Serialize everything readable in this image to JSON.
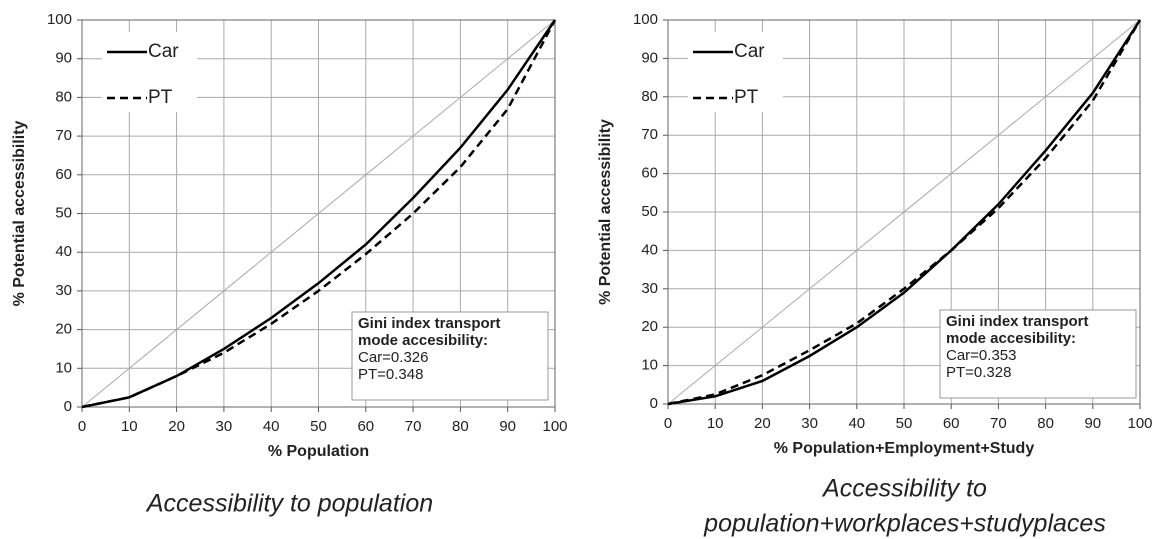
{
  "chart_data": [
    {
      "type": "line",
      "caption": [
        "Accessibility to population"
      ],
      "xlabel": "% Population",
      "ylabel": "% Potential accessibility",
      "x": [
        0,
        10,
        20,
        30,
        40,
        50,
        60,
        70,
        80,
        90,
        100
      ],
      "series": [
        {
          "name": "Car",
          "color": "#000000",
          "linestyle": "solid",
          "values": [
            0,
            2.5,
            8,
            15,
            23,
            32,
            42,
            54,
            67,
            82,
            100
          ]
        },
        {
          "name": "PT",
          "color": "#000000",
          "linestyle": "dashed",
          "values": [
            0,
            2.5,
            8,
            14,
            21.5,
            30,
            39.5,
            50,
            62,
            77,
            100
          ]
        }
      ],
      "xlim": [
        0,
        100
      ],
      "xticks": [
        0,
        10,
        20,
        30,
        40,
        50,
        60,
        70,
        80,
        90,
        100
      ],
      "ylim": [
        0,
        100
      ],
      "yticks": [
        0,
        10,
        20,
        30,
        40,
        50,
        60,
        70,
        80,
        90,
        100
      ],
      "grid": true,
      "legend": "upper left",
      "annotation": {
        "title": [
          "Gini index transport",
          "mode accesibility:"
        ],
        "lines": [
          "Car=0.326",
          "PT=0.348"
        ]
      }
    },
    {
      "type": "line",
      "caption": [
        "Accessibility to",
        "population+workplaces+studyplaces"
      ],
      "xlabel": "% Population+Employment+Study",
      "ylabel": "% Potential accessibility",
      "x": [
        0,
        10,
        20,
        30,
        40,
        50,
        60,
        70,
        80,
        90,
        100
      ],
      "series": [
        {
          "name": "Car",
          "color": "#000000",
          "linestyle": "solid",
          "values": [
            0,
            2,
            6,
            12.5,
            20,
            29,
            40,
            52,
            66,
            81,
            100
          ]
        },
        {
          "name": "PT",
          "color": "#000000",
          "linestyle": "dashed",
          "values": [
            0,
            2.5,
            7.5,
            14,
            21,
            30,
            40,
            51,
            64,
            79,
            100
          ]
        }
      ],
      "xlim": [
        0,
        100
      ],
      "xticks": [
        0,
        10,
        20,
        30,
        40,
        50,
        60,
        70,
        80,
        90,
        100
      ],
      "ylim": [
        0,
        100
      ],
      "yticks": [
        0,
        10,
        20,
        30,
        40,
        50,
        60,
        70,
        80,
        90,
        100
      ],
      "grid": true,
      "legend": "upper left",
      "annotation": {
        "title": [
          "Gini index transport",
          "mode accesibility:"
        ],
        "lines": [
          "Car=0.353",
          "PT=0.328"
        ]
      }
    }
  ]
}
